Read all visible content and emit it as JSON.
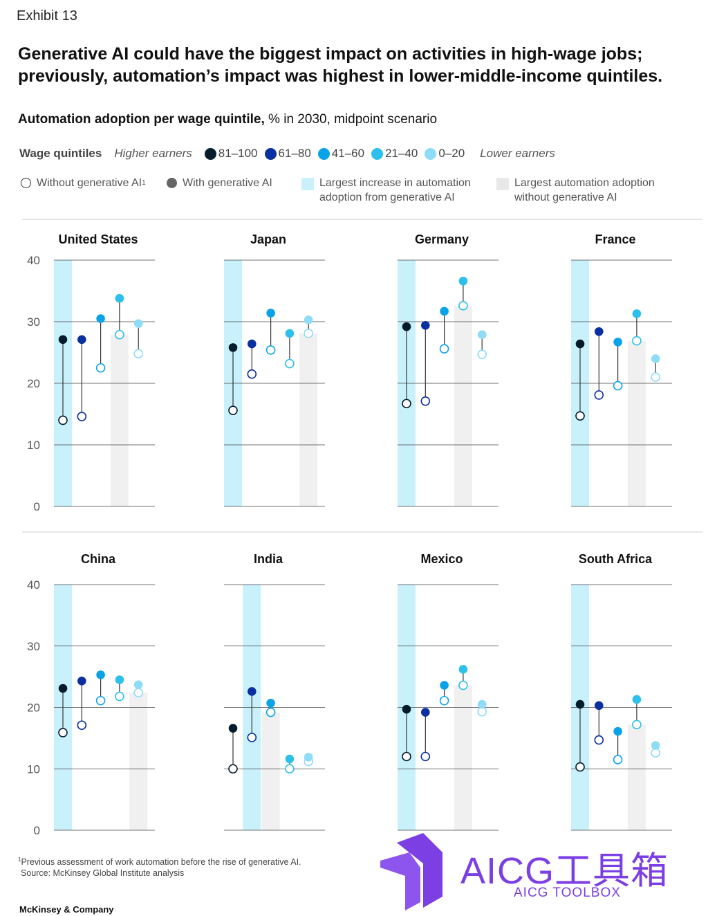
{
  "header": {
    "exhibit": "Exhibit 13",
    "title": "Generative AI could have the biggest impact on activities in high-wage jobs; previously, automation’s impact was highest in lower-middle-income quintiles.",
    "subtitle_bold": "Automation adoption per wage quintile,",
    "subtitle_rest": " % in 2030, midpoint scenario"
  },
  "legend": {
    "wage_label": "Wage quintiles",
    "higher": "Higher earners",
    "lower": "Lower earners",
    "quintiles": [
      {
        "label": "81–100",
        "color": "#051c2c"
      },
      {
        "label": "61–80",
        "color": "#0a2fa0"
      },
      {
        "label": "41–60",
        "color": "#0aa3e8"
      },
      {
        "label": "21–40",
        "color": "#2ec0ec"
      },
      {
        "label": "0–20",
        "color": "#8fdcf6"
      }
    ],
    "without_genai": "Without generative AI",
    "without_genai_sup": "1",
    "with_genai": "With generative AI",
    "largest_increase": [
      "Largest increase in automation",
      "adoption from generative AI"
    ],
    "largest_without": [
      "Largest automation adoption",
      "without generative AI"
    ],
    "highlight_blue": "#c9f1fc",
    "highlight_gray": "#f0f0f0"
  },
  "chart_data": {
    "type": "dumbbell",
    "ylim": [
      0,
      40
    ],
    "yticks": [
      0,
      10,
      20,
      30,
      40
    ],
    "quintiles": [
      "81–100",
      "61–80",
      "41–60",
      "21–40",
      "0–20"
    ],
    "countries": [
      {
        "name": "United States",
        "without": [
          14.0,
          14.6,
          22.5,
          27.9,
          24.8
        ],
        "with": [
          27.1,
          27.1,
          30.5,
          33.8,
          29.7
        ],
        "largest_increase": 0,
        "largest_without": 3
      },
      {
        "name": "Japan",
        "without": [
          15.6,
          21.5,
          25.4,
          23.2,
          28.1
        ],
        "with": [
          25.8,
          26.4,
          31.4,
          28.1,
          30.3
        ],
        "largest_increase": 0,
        "largest_without": 4
      },
      {
        "name": "Germany",
        "without": [
          16.7,
          17.1,
          25.6,
          32.6,
          24.7
        ],
        "with": [
          29.2,
          29.4,
          31.7,
          36.6,
          27.9
        ],
        "largest_increase": 0,
        "largest_without": 3
      },
      {
        "name": "France",
        "without": [
          14.7,
          18.1,
          19.6,
          26.9,
          21.0
        ],
        "with": [
          26.4,
          28.4,
          26.7,
          31.3,
          24.0
        ],
        "largest_increase": 0,
        "largest_without": 3
      },
      {
        "name": "China",
        "without": [
          15.9,
          17.1,
          21.1,
          21.8,
          22.4
        ],
        "with": [
          23.1,
          24.3,
          25.3,
          24.5,
          23.7
        ],
        "largest_increase": 0,
        "largest_without": 4
      },
      {
        "name": "India",
        "without": [
          10.0,
          15.1,
          19.2,
          10.0,
          11.2
        ],
        "with": [
          16.6,
          22.6,
          20.7,
          11.6,
          11.9
        ],
        "largest_increase": 1,
        "largest_without": 2
      },
      {
        "name": "Mexico",
        "without": [
          12.0,
          12.0,
          21.1,
          23.6,
          19.3
        ],
        "with": [
          19.7,
          19.2,
          23.6,
          26.2,
          20.5
        ],
        "largest_increase": 0,
        "largest_without": 3
      },
      {
        "name": "South Africa",
        "without": [
          10.3,
          14.7,
          11.5,
          17.2,
          12.6
        ],
        "with": [
          20.5,
          20.3,
          16.1,
          21.3,
          13.8
        ],
        "largest_increase": 0,
        "largest_without": 3
      }
    ]
  },
  "footnote": {
    "sup": "1",
    "note": "Previous assessment of work automation before the rise of generative AI.",
    "source": "Source: McKinsey Global Institute analysis"
  },
  "brand": "McKinsey & Company",
  "watermark": {
    "text": "AICG工具箱",
    "sub": "AICG TOOLBOX",
    "color": "#7b3fe4"
  }
}
